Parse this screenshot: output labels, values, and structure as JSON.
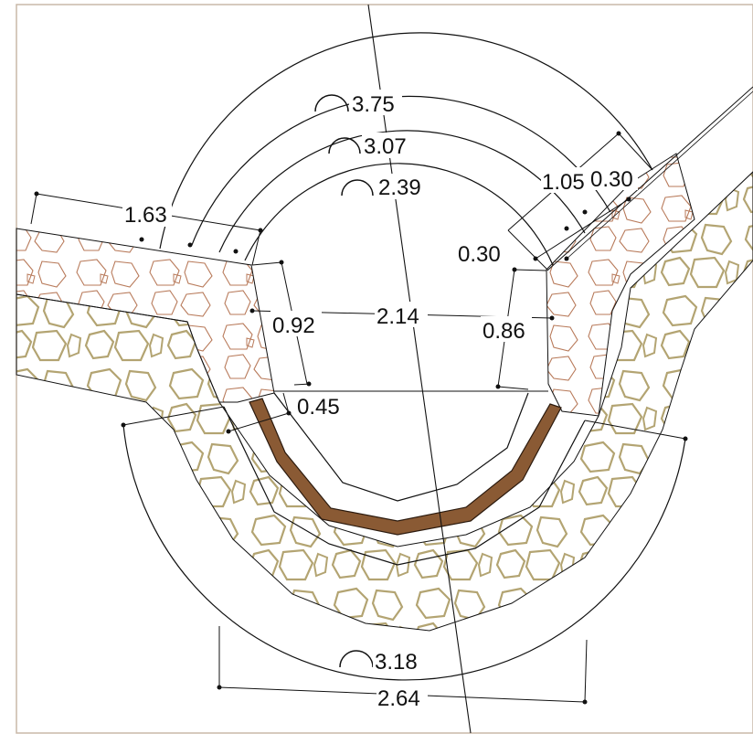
{
  "drawing": {
    "dimensions": {
      "arc_outer": "3.75",
      "arc_middle": "3.07",
      "arc_inner": "2.39",
      "left_wall_length": "1.63",
      "right_wall_outer": "1.05",
      "right_wall_thickness": "0.30",
      "right_inner_offset": "0.30",
      "inner_width": "2.14",
      "left_height": "0.92",
      "right_height": "0.86",
      "liner_offset": "0.45",
      "bottom_arc": "3.18",
      "bottom_span": "2.64"
    },
    "colors": {
      "frame": "#c8b8a8",
      "outer_stone": "#b3a472",
      "inner_stone": "#b87a5a",
      "liner_fill": "#8a5a34",
      "linework": "#111111"
    }
  }
}
